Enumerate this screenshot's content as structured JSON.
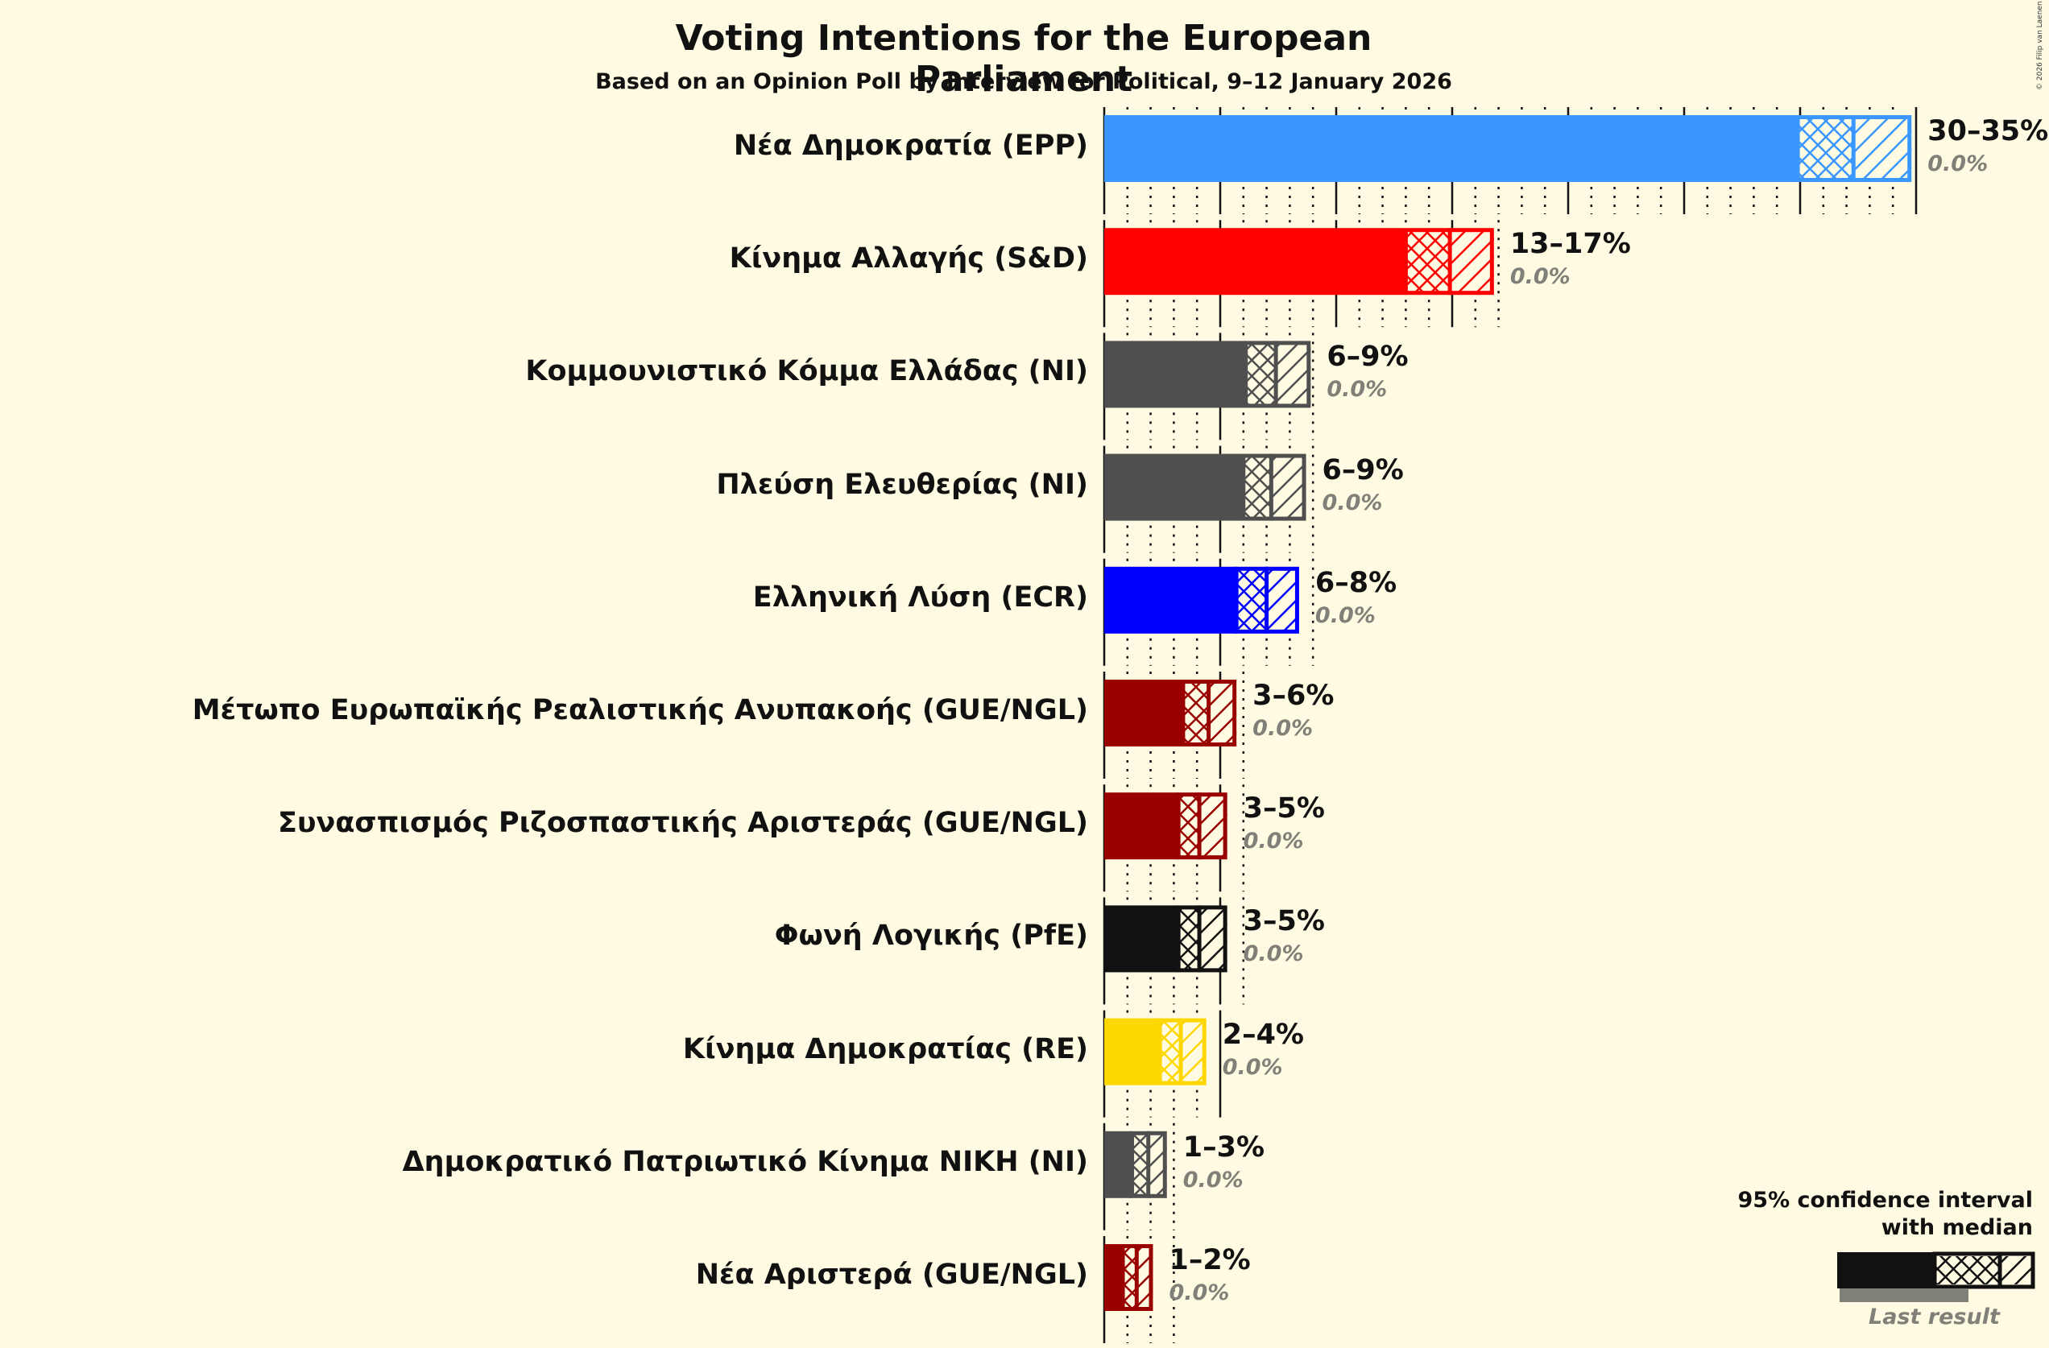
{
  "chart_data": {
    "type": "bar",
    "orientation": "horizontal",
    "title": "Voting Intentions for the European Parliament",
    "subtitle": "Based on an Opinion Poll by Interview for Political, 9–12 January 2026",
    "xlabel": "",
    "ylabel": "",
    "xlim": [
      0,
      36
    ],
    "grid": {
      "major_every_pct": 5,
      "minor_every_pct": 1
    },
    "legend": {
      "title_line1": "95% confidence interval",
      "title_line2": "with median",
      "last_result_label": "Last result",
      "position": "bottom-right"
    },
    "credit": "© 2026 Filip van Laenen",
    "series_fields": [
      "ci_low",
      "median",
      "ci_high",
      "last_result"
    ],
    "parties": [
      {
        "name": "Νέα Δημοκρατία (EPP)",
        "range_label": "30–35%",
        "last_label": "0.0%",
        "ci_low": 29.9,
        "median": 32.3,
        "ci_high": 34.8,
        "last_result": 0.0,
        "color": "#3a97ff"
      },
      {
        "name": "Κίνημα Αλλαγής (S&D)",
        "range_label": "13–17%",
        "last_label": "0.0%",
        "ci_low": 13.0,
        "median": 14.9,
        "ci_high": 16.8,
        "last_result": 0.0,
        "color": "#ff0000"
      },
      {
        "name": "Κομμουνιστικό Κόμμα Ελλάδας (NI)",
        "range_label": "6–9%",
        "last_label": "0.0%",
        "ci_low": 6.1,
        "median": 7.4,
        "ci_high": 8.9,
        "last_result": 0.0,
        "color": "#4f4f4f"
      },
      {
        "name": "Πλεύση Ελευθερίας (NI)",
        "range_label": "6–9%",
        "last_label": "0.0%",
        "ci_low": 6.0,
        "median": 7.2,
        "ci_high": 8.7,
        "last_result": 0.0,
        "color": "#4f4f4f"
      },
      {
        "name": "Ελληνική Λύση (ECR)",
        "range_label": "6–8%",
        "last_label": "0.0%",
        "ci_low": 5.7,
        "median": 7.0,
        "ci_high": 8.4,
        "last_result": 0.0,
        "color": "#0000ff"
      },
      {
        "name": "Μέτωπο Ευρωπαϊκής Ρεαλιστικής Ανυπακοής (GUE/NGL)",
        "range_label": "3–6%",
        "last_label": "0.0%",
        "ci_low": 3.4,
        "median": 4.5,
        "ci_high": 5.7,
        "last_result": 0.0,
        "color": "#990000"
      },
      {
        "name": "Συνασπισμός Ριζοσπαστικής Αριστεράς (GUE/NGL)",
        "range_label": "3–5%",
        "last_label": "0.0%",
        "ci_low": 3.2,
        "median": 4.1,
        "ci_high": 5.3,
        "last_result": 0.0,
        "color": "#990000"
      },
      {
        "name": "Φωνή Λογικής (PfE)",
        "range_label": "3–5%",
        "last_label": "0.0%",
        "ci_low": 3.2,
        "median": 4.1,
        "ci_high": 5.3,
        "last_result": 0.0,
        "color": "#111111"
      },
      {
        "name": "Κίνημα Δημοκρατίας (RE)",
        "range_label": "2–4%",
        "last_label": "0.0%",
        "ci_low": 2.4,
        "median": 3.3,
        "ci_high": 4.4,
        "last_result": 0.0,
        "color": "#ffd700"
      },
      {
        "name": "Δημοκρατικό Πατριωτικό Κίνημα ΝΙΚΗ (NI)",
        "range_label": "1–3%",
        "last_label": "0.0%",
        "ci_low": 1.2,
        "median": 1.9,
        "ci_high": 2.7,
        "last_result": 0.0,
        "color": "#4f4f4f"
      },
      {
        "name": "Νέα Αριστερά (GUE/NGL)",
        "range_label": "1–2%",
        "last_label": "0.0%",
        "ci_low": 0.8,
        "median": 1.4,
        "ci_high": 2.1,
        "last_result": 0.0,
        "color": "#990000"
      }
    ]
  },
  "colors": {
    "background": "#fffbe3",
    "text": "#111111",
    "last_result": "#808078",
    "legend_bar": "#111111"
  }
}
